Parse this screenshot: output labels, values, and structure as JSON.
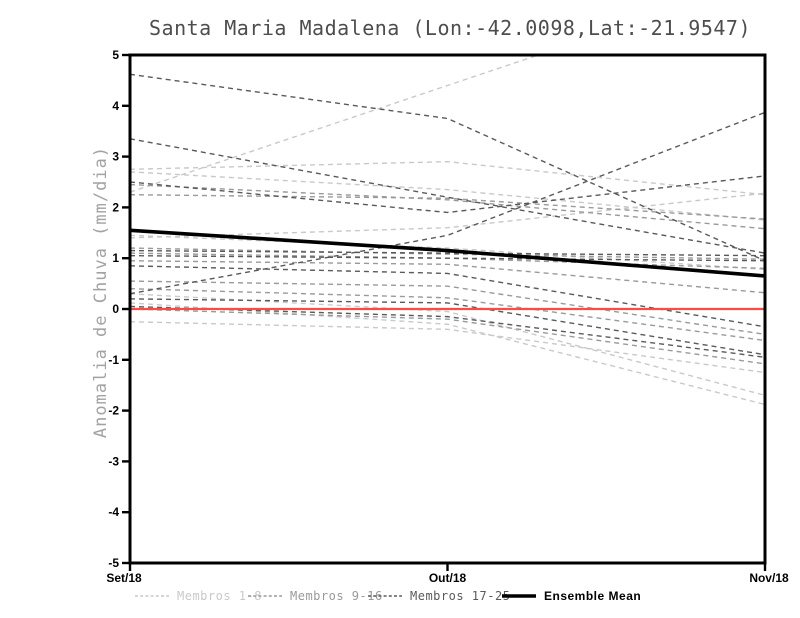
{
  "title": "Santa Maria Madalena (Lon:-42.0098,Lat:-21.9547)",
  "chart_data": {
    "type": "line",
    "title": "Santa Maria Madalena (Lon:-42.0098,Lat:-21.9547)",
    "subtitle": "",
    "xlabel": "",
    "ylabel": "Anomalia de Chuva (mm/dia)",
    "x_categories": [
      "Set/18",
      "Out/18",
      "Nov/18"
    ],
    "ylim": [
      -5,
      5
    ],
    "yticks": [
      5,
      4,
      3,
      2,
      1,
      0,
      -1,
      -2,
      -3,
      -4,
      -5
    ],
    "grid": false,
    "legend_position": "bottom",
    "line_style_members": "dashed",
    "series_groups": [
      {
        "name": "Membros 1-8",
        "color": "#c9c9c9",
        "members": [
          [
            2.75,
            2.9,
            2.25
          ],
          [
            2.7,
            2.35,
            1.75
          ],
          [
            2.3,
            4.4,
            6.5
          ],
          [
            1.45,
            1.2,
            0.78
          ],
          [
            1.4,
            1.6,
            2.28
          ],
          [
            -0.25,
            -0.4,
            -1.25
          ],
          [
            0.3,
            -0.05,
            -1.7
          ],
          [
            0.12,
            -0.3,
            -1.88
          ]
        ]
      },
      {
        "name": "Membros 9-16",
        "color": "#9a9a9a",
        "members": [
          [
            2.45,
            2.15,
            1.58
          ],
          [
            2.25,
            2.18,
            1.77
          ],
          [
            1.2,
            1.08,
            0.98
          ],
          [
            1.1,
            1.0,
            0.8
          ],
          [
            0.95,
            0.88,
            0.32
          ],
          [
            0.55,
            0.45,
            -0.5
          ],
          [
            0.4,
            0.22,
            -0.62
          ],
          [
            0.0,
            -0.2,
            -1.08
          ]
        ]
      },
      {
        "name": "Membros 17-25",
        "color": "#5a5a5a",
        "members": [
          [
            4.62,
            3.75,
            0.95
          ],
          [
            3.35,
            2.2,
            1.1
          ],
          [
            2.5,
            1.9,
            2.62
          ],
          [
            1.15,
            1.1,
            1.05
          ],
          [
            1.05,
            1.0,
            0.95
          ],
          [
            0.3,
            1.45,
            3.87
          ],
          [
            0.85,
            0.7,
            -0.35
          ],
          [
            0.2,
            0.12,
            -0.9
          ],
          [
            0.05,
            -0.15,
            -0.95
          ]
        ]
      }
    ],
    "ensemble_mean": {
      "name": "Ensemble Mean",
      "color": "#000000",
      "values": [
        1.55,
        1.15,
        0.65
      ]
    },
    "zero_line": {
      "color": "#f94c43",
      "value": 0
    }
  },
  "legend": {
    "items": [
      {
        "label": "Membros 1-8",
        "color": "#c9c9c9",
        "style": "dashed",
        "bold": false
      },
      {
        "label": "Membros 9-16",
        "color": "#9a9a9a",
        "style": "dashed",
        "bold": false
      },
      {
        "label": "Membros 17-25",
        "color": "#5a5a5a",
        "style": "dashed",
        "bold": false
      },
      {
        "label": "Ensemble Mean",
        "color": "#000000",
        "style": "solid",
        "bold": true
      }
    ]
  }
}
